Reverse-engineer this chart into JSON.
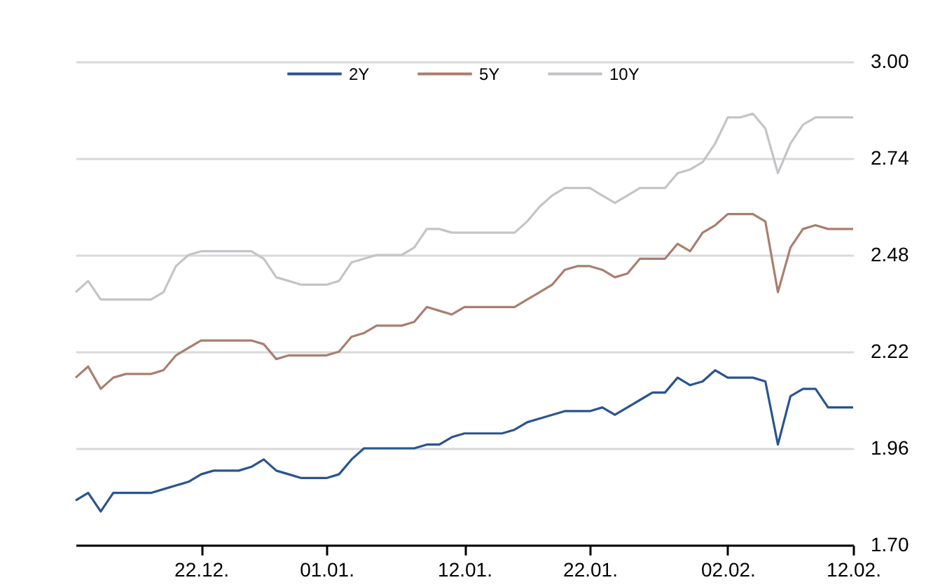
{
  "chart_data": {
    "type": "line",
    "categories": [
      null,
      null,
      null,
      null,
      null,
      null,
      null,
      null,
      null,
      null,
      "22.12.",
      null,
      null,
      null,
      null,
      null,
      null,
      null,
      null,
      null,
      "01.01.",
      null,
      null,
      null,
      null,
      null,
      null,
      null,
      null,
      null,
      null,
      "12.01.",
      null,
      null,
      null,
      null,
      null,
      null,
      null,
      null,
      null,
      "22.01.",
      null,
      null,
      null,
      null,
      null,
      null,
      null,
      null,
      null,
      null,
      "02.02.",
      null,
      null,
      null,
      null,
      null,
      null,
      null,
      null,
      null,
      "12.02."
    ],
    "series": [
      {
        "name": "2Y",
        "color": "#2a5490",
        "values": [
          1.82,
          1.84,
          1.79,
          1.84,
          1.84,
          1.84,
          1.84,
          1.85,
          1.86,
          1.87,
          1.89,
          1.9,
          1.9,
          1.9,
          1.91,
          1.93,
          1.9,
          1.89,
          1.88,
          1.88,
          1.88,
          1.89,
          1.93,
          1.96,
          1.96,
          1.96,
          1.96,
          1.96,
          1.97,
          1.97,
          1.99,
          2.0,
          2.0,
          2.0,
          2.0,
          2.01,
          2.03,
          2.04,
          2.05,
          2.06,
          2.06,
          2.06,
          2.07,
          2.05,
          2.07,
          2.09,
          2.11,
          2.11,
          2.15,
          2.13,
          2.14,
          2.17,
          2.15,
          2.15,
          2.15,
          2.14,
          1.97,
          2.1,
          2.12,
          2.12,
          2.07,
          2.07,
          2.07
        ]
      },
      {
        "name": "5Y",
        "color": "#a97e6e",
        "values": [
          2.15,
          2.18,
          2.12,
          2.15,
          2.16,
          2.16,
          2.16,
          2.17,
          2.21,
          2.23,
          2.25,
          2.25,
          2.25,
          2.25,
          2.25,
          2.24,
          2.2,
          2.21,
          2.21,
          2.21,
          2.21,
          2.22,
          2.26,
          2.27,
          2.29,
          2.29,
          2.29,
          2.3,
          2.34,
          2.33,
          2.32,
          2.34,
          2.34,
          2.34,
          2.34,
          2.34,
          2.36,
          2.38,
          2.4,
          2.44,
          2.45,
          2.45,
          2.44,
          2.42,
          2.43,
          2.47,
          2.47,
          2.47,
          2.51,
          2.49,
          2.54,
          2.56,
          2.59,
          2.59,
          2.59,
          2.57,
          2.38,
          2.5,
          2.55,
          2.56,
          2.55,
          2.55,
          2.55
        ]
      },
      {
        "name": "10Y",
        "color": "#c4c4c8",
        "values": [
          2.38,
          2.41,
          2.36,
          2.36,
          2.36,
          2.36,
          2.36,
          2.38,
          2.45,
          2.48,
          2.49,
          2.49,
          2.49,
          2.49,
          2.49,
          2.47,
          2.42,
          2.41,
          2.4,
          2.4,
          2.4,
          2.41,
          2.46,
          2.47,
          2.48,
          2.48,
          2.48,
          2.5,
          2.55,
          2.55,
          2.54,
          2.54,
          2.54,
          2.54,
          2.54,
          2.54,
          2.57,
          2.61,
          2.64,
          2.66,
          2.66,
          2.66,
          2.64,
          2.62,
          2.64,
          2.66,
          2.66,
          2.66,
          2.7,
          2.71,
          2.73,
          2.78,
          2.85,
          2.85,
          2.86,
          2.82,
          2.7,
          2.78,
          2.83,
          2.85,
          2.85,
          2.85,
          2.85
        ]
      }
    ],
    "ylim": [
      1.7,
      3.0
    ],
    "yticks": [
      {
        "value": 1.7,
        "label": "1.70"
      },
      {
        "value": 1.96,
        "label": "1.96"
      },
      {
        "value": 2.22,
        "label": "2.22"
      },
      {
        "value": 2.48,
        "label": "2.48"
      },
      {
        "value": 2.74,
        "label": "2.74"
      },
      {
        "value": 3.0,
        "label": "3.00"
      }
    ],
    "grid": "y",
    "legend": "top",
    "line_style": "solid",
    "marker": "none"
  }
}
